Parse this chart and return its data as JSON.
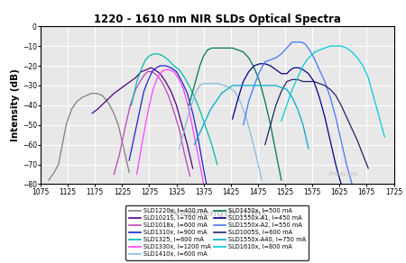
{
  "title": "1220 - 1610 nm NIR SLDs Optical Spectra",
  "xlabel": "Wavelength (nm)",
  "ylabel": "Intensity (dB)",
  "xlim": [
    1075,
    1725
  ],
  "ylim": [
    -80,
    0
  ],
  "xticks": [
    1075,
    1125,
    1175,
    1225,
    1275,
    1325,
    1375,
    1425,
    1475,
    1525,
    1575,
    1625,
    1675,
    1725
  ],
  "yticks": [
    0,
    -10,
    -20,
    -30,
    -40,
    -50,
    -60,
    -70,
    -80
  ],
  "series": [
    {
      "label": "SLD1220x, I=400 mA",
      "color": "#808080",
      "points": [
        [
          1090,
          -78
        ],
        [
          1100,
          -74
        ],
        [
          1108,
          -70
        ],
        [
          1115,
          -60
        ],
        [
          1122,
          -50
        ],
        [
          1132,
          -42
        ],
        [
          1142,
          -38
        ],
        [
          1152,
          -36
        ],
        [
          1160,
          -35
        ],
        [
          1168,
          -34
        ],
        [
          1178,
          -34
        ],
        [
          1188,
          -35
        ],
        [
          1198,
          -38
        ],
        [
          1208,
          -43
        ],
        [
          1218,
          -50
        ],
        [
          1228,
          -62
        ],
        [
          1238,
          -74
        ]
      ]
    },
    {
      "label": "SLD1021S, I=700 mA",
      "color": "#4B0082",
      "points": [
        [
          1170,
          -44
        ],
        [
          1180,
          -42
        ],
        [
          1195,
          -38
        ],
        [
          1210,
          -34
        ],
        [
          1230,
          -30
        ],
        [
          1250,
          -26
        ],
        [
          1260,
          -23
        ],
        [
          1270,
          -22
        ],
        [
          1278,
          -21
        ],
        [
          1285,
          -22
        ],
        [
          1295,
          -24
        ],
        [
          1305,
          -28
        ],
        [
          1315,
          -33
        ],
        [
          1325,
          -40
        ],
        [
          1335,
          -50
        ],
        [
          1345,
          -60
        ],
        [
          1355,
          -72
        ]
      ]
    },
    {
      "label": "SLD1018x, I=600 mA",
      "color": "#BB44BB",
      "points": [
        [
          1210,
          -75
        ],
        [
          1220,
          -65
        ],
        [
          1230,
          -52
        ],
        [
          1240,
          -40
        ],
        [
          1250,
          -32
        ],
        [
          1258,
          -28
        ],
        [
          1265,
          -25
        ],
        [
          1272,
          -23
        ],
        [
          1280,
          -23
        ],
        [
          1290,
          -25
        ],
        [
          1300,
          -29
        ],
        [
          1310,
          -35
        ],
        [
          1320,
          -43
        ],
        [
          1330,
          -52
        ],
        [
          1340,
          -65
        ],
        [
          1350,
          -76
        ]
      ]
    },
    {
      "label": "SLD1310x, I=900 mA",
      "color": "#2222CC",
      "points": [
        [
          1238,
          -68
        ],
        [
          1248,
          -55
        ],
        [
          1258,
          -42
        ],
        [
          1265,
          -33
        ],
        [
          1272,
          -28
        ],
        [
          1280,
          -23
        ],
        [
          1288,
          -21
        ],
        [
          1295,
          -20
        ],
        [
          1305,
          -20
        ],
        [
          1315,
          -21
        ],
        [
          1325,
          -23
        ],
        [
          1335,
          -28
        ],
        [
          1345,
          -34
        ],
        [
          1355,
          -44
        ],
        [
          1365,
          -57
        ],
        [
          1372,
          -68
        ],
        [
          1380,
          -80
        ]
      ]
    },
    {
      "label": "SLD1325, I=600 mA",
      "color": "#00BBAA",
      "points": [
        [
          1242,
          -40
        ],
        [
          1252,
          -28
        ],
        [
          1260,
          -22
        ],
        [
          1268,
          -17
        ],
        [
          1275,
          -15
        ],
        [
          1283,
          -14
        ],
        [
          1292,
          -14
        ],
        [
          1300,
          -15
        ],
        [
          1310,
          -17
        ],
        [
          1320,
          -20
        ],
        [
          1330,
          -22
        ],
        [
          1340,
          -26
        ],
        [
          1350,
          -31
        ],
        [
          1360,
          -37
        ],
        [
          1370,
          -44
        ],
        [
          1380,
          -52
        ],
        [
          1390,
          -60
        ],
        [
          1400,
          -70
        ]
      ]
    },
    {
      "label": "SLD1330x, I=1200 mA",
      "color": "#FF44FF",
      "points": [
        [
          1252,
          -75
        ],
        [
          1260,
          -62
        ],
        [
          1268,
          -50
        ],
        [
          1275,
          -40
        ],
        [
          1282,
          -32
        ],
        [
          1290,
          -26
        ],
        [
          1298,
          -23
        ],
        [
          1305,
          -22
        ],
        [
          1312,
          -22
        ],
        [
          1320,
          -23
        ],
        [
          1328,
          -26
        ],
        [
          1338,
          -32
        ],
        [
          1348,
          -42
        ],
        [
          1358,
          -56
        ],
        [
          1368,
          -70
        ],
        [
          1375,
          -80
        ]
      ]
    },
    {
      "label": "SLD1410x, I=600 mA",
      "color": "#88BBDD",
      "points": [
        [
          1330,
          -62
        ],
        [
          1340,
          -52
        ],
        [
          1350,
          -42
        ],
        [
          1360,
          -34
        ],
        [
          1368,
          -30
        ],
        [
          1375,
          -29
        ],
        [
          1383,
          -29
        ],
        [
          1392,
          -29
        ],
        [
          1402,
          -29
        ],
        [
          1412,
          -30
        ],
        [
          1422,
          -31
        ],
        [
          1432,
          -33
        ],
        [
          1442,
          -38
        ],
        [
          1452,
          -45
        ],
        [
          1462,
          -55
        ],
        [
          1472,
          -66
        ],
        [
          1482,
          -78
        ]
      ]
    },
    {
      "label": "SLD1450x, I=500 mA",
      "color": "#007755",
      "points": [
        [
          1348,
          -40
        ],
        [
          1358,
          -30
        ],
        [
          1368,
          -20
        ],
        [
          1375,
          -15
        ],
        [
          1382,
          -12
        ],
        [
          1390,
          -11
        ],
        [
          1398,
          -11
        ],
        [
          1408,
          -11
        ],
        [
          1418,
          -11
        ],
        [
          1428,
          -11
        ],
        [
          1438,
          -12
        ],
        [
          1448,
          -13
        ],
        [
          1458,
          -16
        ],
        [
          1468,
          -21
        ],
        [
          1478,
          -28
        ],
        [
          1488,
          -38
        ],
        [
          1498,
          -50
        ],
        [
          1508,
          -64
        ],
        [
          1518,
          -78
        ]
      ]
    },
    {
      "label": "SLD1550x-A1, I=450 mA",
      "color": "#000088",
      "points": [
        [
          1428,
          -47
        ],
        [
          1438,
          -37
        ],
        [
          1448,
          -28
        ],
        [
          1458,
          -23
        ],
        [
          1468,
          -20
        ],
        [
          1478,
          -19
        ],
        [
          1488,
          -19
        ],
        [
          1498,
          -20
        ],
        [
          1508,
          -22
        ],
        [
          1518,
          -24
        ],
        [
          1528,
          -24
        ],
        [
          1535,
          -22
        ],
        [
          1542,
          -21
        ],
        [
          1550,
          -21
        ],
        [
          1558,
          -22
        ],
        [
          1568,
          -24
        ],
        [
          1578,
          -28
        ],
        [
          1588,
          -36
        ],
        [
          1598,
          -46
        ],
        [
          1608,
          -58
        ],
        [
          1618,
          -70
        ],
        [
          1628,
          -80
        ]
      ]
    },
    {
      "label": "SLD1550x-A2, I=550 mA",
      "color": "#4477FF",
      "points": [
        [
          1448,
          -50
        ],
        [
          1458,
          -38
        ],
        [
          1468,
          -30
        ],
        [
          1478,
          -23
        ],
        [
          1488,
          -18
        ],
        [
          1498,
          -17
        ],
        [
          1508,
          -16
        ],
        [
          1518,
          -14
        ],
        [
          1528,
          -11
        ],
        [
          1538,
          -8
        ],
        [
          1548,
          -8
        ],
        [
          1555,
          -8
        ],
        [
          1562,
          -9
        ],
        [
          1570,
          -12
        ],
        [
          1578,
          -16
        ],
        [
          1588,
          -22
        ],
        [
          1598,
          -28
        ],
        [
          1608,
          -36
        ],
        [
          1618,
          -46
        ],
        [
          1628,
          -58
        ],
        [
          1638,
          -70
        ],
        [
          1648,
          -80
        ]
      ]
    },
    {
      "label": "SLD1005S, I=600 mA",
      "color": "#222266",
      "points": [
        [
          1488,
          -60
        ],
        [
          1498,
          -50
        ],
        [
          1508,
          -40
        ],
        [
          1518,
          -33
        ],
        [
          1528,
          -28
        ],
        [
          1538,
          -27
        ],
        [
          1548,
          -27
        ],
        [
          1558,
          -28
        ],
        [
          1568,
          -28
        ],
        [
          1578,
          -28
        ],
        [
          1588,
          -29
        ],
        [
          1598,
          -30
        ],
        [
          1608,
          -32
        ],
        [
          1618,
          -35
        ],
        [
          1628,
          -40
        ],
        [
          1638,
          -46
        ],
        [
          1648,
          -52
        ],
        [
          1658,
          -58
        ],
        [
          1668,
          -65
        ],
        [
          1678,
          -72
        ]
      ]
    },
    {
      "label": "SLD1550x-A40, I=750 mA",
      "color": "#00AACC",
      "points": [
        [
          1358,
          -60
        ],
        [
          1368,
          -54
        ],
        [
          1378,
          -48
        ],
        [
          1388,
          -42
        ],
        [
          1398,
          -38
        ],
        [
          1408,
          -34
        ],
        [
          1418,
          -32
        ],
        [
          1428,
          -30
        ],
        [
          1438,
          -30
        ],
        [
          1448,
          -30
        ],
        [
          1458,
          -30
        ],
        [
          1468,
          -30
        ],
        [
          1478,
          -30
        ],
        [
          1488,
          -30
        ],
        [
          1498,
          -30
        ],
        [
          1508,
          -30
        ],
        [
          1518,
          -31
        ],
        [
          1528,
          -32
        ],
        [
          1538,
          -36
        ],
        [
          1548,
          -42
        ],
        [
          1558,
          -50
        ],
        [
          1568,
          -62
        ]
      ]
    },
    {
      "label": "SLD1610x, I=800 mA",
      "color": "#00CCDD",
      "points": [
        [
          1518,
          -48
        ],
        [
          1528,
          -40
        ],
        [
          1538,
          -32
        ],
        [
          1548,
          -26
        ],
        [
          1558,
          -20
        ],
        [
          1565,
          -17
        ],
        [
          1572,
          -15
        ],
        [
          1580,
          -13
        ],
        [
          1588,
          -12
        ],
        [
          1598,
          -11
        ],
        [
          1608,
          -10
        ],
        [
          1618,
          -10
        ],
        [
          1628,
          -10
        ],
        [
          1638,
          -11
        ],
        [
          1648,
          -13
        ],
        [
          1658,
          -16
        ],
        [
          1668,
          -20
        ],
        [
          1678,
          -26
        ],
        [
          1688,
          -36
        ],
        [
          1698,
          -46
        ],
        [
          1708,
          -56
        ]
      ]
    }
  ],
  "watermark": "THORLABS",
  "bg_color": "#e8e8e8",
  "grid_color": "#ffffff"
}
